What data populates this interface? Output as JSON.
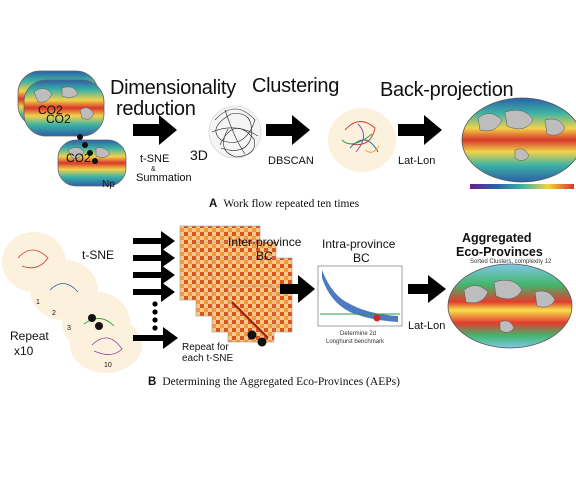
{
  "panel_a": {
    "stages": {
      "dim_reduction_line1": "Dimensionality",
      "dim_reduction_line2": "reduction",
      "clustering": "Clustering",
      "back_projection": "Back-projection"
    },
    "inputs": {
      "co2_top": "CO2",
      "co2_mid": "CO2",
      "co2_low": "CO2",
      "np": "Np"
    },
    "method_labels": {
      "tsne": "t-SNE",
      "amp": "&",
      "summation": "Summation",
      "three_d": "3D",
      "dbscan": "DBSCAN",
      "latlon": "Lat-Lon"
    },
    "map_title": "",
    "caption_letter": "A",
    "caption_text": "Work flow repeated ten times"
  },
  "panel_b": {
    "tsne_label": "t-SNE",
    "repeat_line1": "Repeat",
    "repeat_line2": "x10",
    "run_numbers": [
      "1",
      "2",
      "3",
      "10"
    ],
    "inter_province_line1": "Inter-province",
    "inter_province_line2": "BC",
    "repeat_each_line1": "Repeat for",
    "repeat_each_line2": "each t-SNE",
    "intra_province_line1": "Intra-province",
    "intra_province_line2": "BC",
    "determine_line1": "Determine 2d",
    "determine_line2": "Longhurst benchmark",
    "latlon": "Lat-Lon",
    "result_title_line1": "Aggregated",
    "result_title_line2": "Eco-Provinces",
    "result_subtitle": "Sorted Clusters, complexity 12",
    "caption_letter": "B",
    "caption_text": "Determining the Aggregated Eco-Provinces (AEPs)"
  },
  "colors": {
    "ocean_warm": "#d8372a",
    "ocean_mid": "#f2d24a",
    "ocean_cool": "#3db3a4",
    "ocean_deep": "#2b5fa8",
    "land": "#bdbdbd",
    "blob": "#fbf1dc",
    "matrix_hot": "#e0521c",
    "matrix_cool": "#fbe3b6",
    "curve": "#2e63b8",
    "benchmark": "#2a9d3a",
    "marker": "#d6242a"
  }
}
